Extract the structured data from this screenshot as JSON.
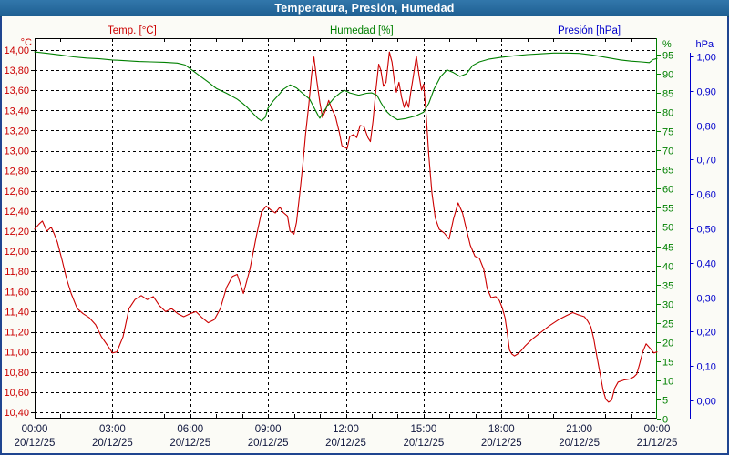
{
  "window": {
    "title": "Temperatura, Presión, Humedad"
  },
  "legend": [
    {
      "label": "Temp. [°C]",
      "color": "#cc0000"
    },
    {
      "label": "Humedad [%]",
      "color": "#008000"
    },
    {
      "label": "Presión [hPa]",
      "color": "#0000cc"
    }
  ],
  "colors": {
    "titlebar_bg": "#26689b",
    "window_border": "#1f4590",
    "margin_bg": "#fbfbf6",
    "plot_bg": "#ffffff",
    "grid": "#000000",
    "frame": "#000000",
    "time_label": "#11183f",
    "temp": "#cc0000",
    "humidity": "#008000",
    "pressure": "#0000cc"
  },
  "chart_data": {
    "type": "line",
    "title": "Temperatura, Presión, Humedad",
    "legend_position": "top",
    "grid": {
      "horizontal": "dashed per 0.20 °C step",
      "vertical": "dashed every 3 h",
      "minor_x_ticks": "hourly"
    },
    "x_axis": {
      "range_hours": [
        0,
        24
      ],
      "tick_interval_hours": 3,
      "ticks": [
        {
          "time": "00:00",
          "date": "20/12/25"
        },
        {
          "time": "03:00",
          "date": "20/12/25"
        },
        {
          "time": "06:00",
          "date": "20/12/25"
        },
        {
          "time": "09:00",
          "date": "20/12/25"
        },
        {
          "time": "12:00",
          "date": "20/12/25"
        },
        {
          "time": "15:00",
          "date": "20/12/25"
        },
        {
          "time": "18:00",
          "date": "20/12/25"
        },
        {
          "time": "21:00",
          "date": "20/12/25"
        },
        {
          "time": "00:00",
          "date": "21/12/25"
        }
      ]
    },
    "y_axes": {
      "temperature": {
        "unit": "°C",
        "side": "left",
        "color": "#cc0000",
        "min": 10.4,
        "max": 14.0,
        "tick_step": 0.2,
        "tick_labels": [
          "14,00",
          "13,80",
          "13,60",
          "13,40",
          "13,20",
          "13,00",
          "12,80",
          "12,60",
          "12,40",
          "12,20",
          "12,00",
          "11,80",
          "11,60",
          "11,40",
          "11,20",
          "11,00",
          "10,80",
          "10,60",
          "10,40"
        ]
      },
      "humidity": {
        "unit": "%",
        "side": "right",
        "color": "#008000",
        "min": 0,
        "max": 95,
        "tick_step": 5,
        "tick_labels": [
          "95",
          "90",
          "85",
          "80",
          "75",
          "70",
          "65",
          "60",
          "55",
          "50",
          "45",
          "40",
          "35",
          "30",
          "25",
          "20",
          "15",
          "10",
          "5",
          "0"
        ]
      },
      "pressure": {
        "unit": "hPa",
        "side": "far-right",
        "color": "#0000cc",
        "min": 0.0,
        "max": 1.0,
        "tick_step": 0.1,
        "tick_labels": [
          "1,00",
          "0,90",
          "0,80",
          "0,70",
          "0,60",
          "0,50",
          "0,40",
          "0,30",
          "0,20",
          "0,10",
          "0,00"
        ]
      }
    },
    "series": [
      {
        "name": "Temp. [°C]",
        "axis": "temperature",
        "color": "#cc0000",
        "points": [
          [
            0,
            12.22
          ],
          [
            0.17,
            12.27
          ],
          [
            0.3,
            12.3
          ],
          [
            0.47,
            12.2
          ],
          [
            0.64,
            12.24
          ],
          [
            0.76,
            12.17
          ],
          [
            0.88,
            12.09
          ],
          [
            1.06,
            11.91
          ],
          [
            1.23,
            11.73
          ],
          [
            1.41,
            11.58
          ],
          [
            1.64,
            11.43
          ],
          [
            1.87,
            11.38
          ],
          [
            2.11,
            11.34
          ],
          [
            2.35,
            11.27
          ],
          [
            2.58,
            11.15
          ],
          [
            2.82,
            11.06
          ],
          [
            3,
            10.99
          ],
          [
            3.17,
            11
          ],
          [
            3.41,
            11.15
          ],
          [
            3.64,
            11.43
          ],
          [
            3.87,
            11.52
          ],
          [
            4.11,
            11.56
          ],
          [
            4.34,
            11.52
          ],
          [
            4.58,
            11.55
          ],
          [
            4.81,
            11.46
          ],
          [
            5.05,
            11.4
          ],
          [
            5.28,
            11.43
          ],
          [
            5.52,
            11.38
          ],
          [
            5.75,
            11.35
          ],
          [
            5.99,
            11.38
          ],
          [
            6.22,
            11.4
          ],
          [
            6.46,
            11.34
          ],
          [
            6.69,
            11.29
          ],
          [
            6.93,
            11.32
          ],
          [
            7.16,
            11.43
          ],
          [
            7.4,
            11.64
          ],
          [
            7.63,
            11.75
          ],
          [
            7.81,
            11.77
          ],
          [
            8.05,
            11.58
          ],
          [
            8.3,
            11.82
          ],
          [
            8.55,
            12.15
          ],
          [
            8.75,
            12.39
          ],
          [
            8.93,
            12.45
          ],
          [
            9.11,
            12.41
          ],
          [
            9.28,
            12.38
          ],
          [
            9.46,
            12.44
          ],
          [
            9.57,
            12.39
          ],
          [
            9.75,
            12.35
          ],
          [
            9.85,
            12.2
          ],
          [
            10,
            12.17
          ],
          [
            10.1,
            12.29
          ],
          [
            10.22,
            12.56
          ],
          [
            10.34,
            12.86
          ],
          [
            10.45,
            13.17
          ],
          [
            10.57,
            13.45
          ],
          [
            10.68,
            13.75
          ],
          [
            10.77,
            13.93
          ],
          [
            10.88,
            13.7
          ],
          [
            11,
            13.48
          ],
          [
            11.1,
            13.33
          ],
          [
            11.22,
            13.4
          ],
          [
            11.34,
            13.5
          ],
          [
            11.45,
            13.42
          ],
          [
            11.6,
            13.34
          ],
          [
            11.75,
            13.18
          ],
          [
            11.85,
            13.05
          ],
          [
            12.05,
            13.02
          ],
          [
            12.15,
            13.14
          ],
          [
            12.3,
            13.16
          ],
          [
            12.42,
            13.13
          ],
          [
            12.55,
            13.25
          ],
          [
            12.7,
            13.24
          ],
          [
            12.85,
            13.13
          ],
          [
            12.95,
            13.09
          ],
          [
            13.05,
            13.3
          ],
          [
            13.17,
            13.63
          ],
          [
            13.27,
            13.86
          ],
          [
            13.35,
            13.8
          ],
          [
            13.45,
            13.64
          ],
          [
            13.55,
            13.68
          ],
          [
            13.68,
            13.98
          ],
          [
            13.78,
            13.88
          ],
          [
            13.88,
            13.68
          ],
          [
            13.95,
            13.58
          ],
          [
            14.05,
            13.68
          ],
          [
            14.15,
            13.53
          ],
          [
            14.25,
            13.43
          ],
          [
            14.33,
            13.5
          ],
          [
            14.42,
            13.43
          ],
          [
            14.5,
            13.57
          ],
          [
            14.62,
            13.77
          ],
          [
            14.72,
            13.94
          ],
          [
            14.82,
            13.75
          ],
          [
            14.92,
            13.6
          ],
          [
            15,
            13.66
          ],
          [
            15.1,
            13.35
          ],
          [
            15.2,
            12.95
          ],
          [
            15.32,
            12.58
          ],
          [
            15.45,
            12.33
          ],
          [
            15.6,
            12.22
          ],
          [
            15.8,
            12.18
          ],
          [
            15.98,
            12.12
          ],
          [
            16.15,
            12.32
          ],
          [
            16.33,
            12.48
          ],
          [
            16.5,
            12.38
          ],
          [
            16.62,
            12.25
          ],
          [
            16.8,
            12.06
          ],
          [
            16.98,
            11.95
          ],
          [
            17.15,
            11.93
          ],
          [
            17.32,
            11.82
          ],
          [
            17.45,
            11.63
          ],
          [
            17.6,
            11.54
          ],
          [
            17.78,
            11.55
          ],
          [
            17.92,
            11.51
          ],
          [
            18.03,
            11.44
          ],
          [
            18.14,
            11.34
          ],
          [
            18.22,
            11.2
          ],
          [
            18.31,
            11.02
          ],
          [
            18.4,
            10.98
          ],
          [
            18.5,
            10.96
          ],
          [
            18.63,
            10.98
          ],
          [
            18.75,
            11.01
          ],
          [
            18.92,
            11.06
          ],
          [
            19.2,
            11.13
          ],
          [
            19.5,
            11.19
          ],
          [
            19.85,
            11.26
          ],
          [
            20.2,
            11.32
          ],
          [
            20.5,
            11.36
          ],
          [
            20.75,
            11.39
          ],
          [
            20.95,
            11.37
          ],
          [
            21.2,
            11.35
          ],
          [
            21.32,
            11.31
          ],
          [
            21.45,
            11.25
          ],
          [
            21.56,
            11.13
          ],
          [
            21.67,
            10.97
          ],
          [
            21.8,
            10.79
          ],
          [
            21.92,
            10.62
          ],
          [
            22.02,
            10.53
          ],
          [
            22.13,
            10.5
          ],
          [
            22.25,
            10.52
          ],
          [
            22.37,
            10.64
          ],
          [
            22.5,
            10.7
          ],
          [
            22.72,
            10.72
          ],
          [
            22.95,
            10.73
          ],
          [
            23.1,
            10.75
          ],
          [
            23.22,
            10.78
          ],
          [
            23.33,
            10.88
          ],
          [
            23.45,
            11
          ],
          [
            23.58,
            11.08
          ],
          [
            23.72,
            11.04
          ],
          [
            23.88,
            10.99
          ],
          [
            24,
            11
          ]
        ]
      },
      {
        "name": "Humedad [%]",
        "axis": "humidity",
        "color": "#008000",
        "points": [
          [
            0,
            95.7
          ],
          [
            0.5,
            95.3
          ],
          [
            1,
            94.9
          ],
          [
            1.5,
            94.4
          ],
          [
            2,
            94.1
          ],
          [
            2.5,
            93.9
          ],
          [
            3,
            93.6
          ],
          [
            3.5,
            93.4
          ],
          [
            4,
            93.2
          ],
          [
            4.5,
            93.1
          ],
          [
            5,
            93
          ],
          [
            5.5,
            92.8
          ],
          [
            5.8,
            92.3
          ],
          [
            6,
            91.3
          ],
          [
            6.3,
            89.8
          ],
          [
            6.7,
            87.8
          ],
          [
            7,
            86.2
          ],
          [
            7.4,
            84.9
          ],
          [
            7.8,
            83.4
          ],
          [
            8,
            82.4
          ],
          [
            8.2,
            81.2
          ],
          [
            8.4,
            79.8
          ],
          [
            8.6,
            78.4
          ],
          [
            8.75,
            77.7
          ],
          [
            8.9,
            78.7
          ],
          [
            9,
            81
          ],
          [
            9.2,
            82.9
          ],
          [
            9.4,
            84.4
          ],
          [
            9.6,
            86
          ],
          [
            9.85,
            87.1
          ],
          [
            10.1,
            86.3
          ],
          [
            10.3,
            85.1
          ],
          [
            10.6,
            83.4
          ],
          [
            10.8,
            80.8
          ],
          [
            10.95,
            78.9
          ],
          [
            11,
            78.4
          ],
          [
            11.1,
            79.6
          ],
          [
            11.3,
            81.7
          ],
          [
            11.55,
            83.7
          ],
          [
            11.8,
            85.1
          ],
          [
            11.95,
            85.7
          ],
          [
            12.15,
            85
          ],
          [
            12.5,
            84.4
          ],
          [
            12.8,
            84.9
          ],
          [
            13,
            85
          ],
          [
            13.2,
            84.4
          ],
          [
            13.35,
            82.5
          ],
          [
            13.55,
            80.3
          ],
          [
            13.75,
            79
          ],
          [
            14,
            78
          ],
          [
            14.3,
            78.3
          ],
          [
            14.7,
            79
          ],
          [
            15,
            80
          ],
          [
            15.2,
            82.3
          ],
          [
            15.4,
            86
          ],
          [
            15.65,
            89.2
          ],
          [
            15.9,
            91
          ],
          [
            16.15,
            90.3
          ],
          [
            16.4,
            89.3
          ],
          [
            16.65,
            90
          ],
          [
            16.9,
            92.2
          ],
          [
            17.15,
            93.1
          ],
          [
            17.5,
            93.8
          ],
          [
            18,
            94.3
          ],
          [
            18.5,
            94.7
          ],
          [
            19,
            95
          ],
          [
            19.5,
            95.2
          ],
          [
            20,
            95.4
          ],
          [
            20.5,
            95.4
          ],
          [
            21,
            95.3
          ],
          [
            21.5,
            94.9
          ],
          [
            22,
            94.3
          ],
          [
            22.6,
            93.6
          ],
          [
            23,
            93.3
          ],
          [
            23.4,
            93.1
          ],
          [
            23.7,
            92.9
          ],
          [
            23.85,
            93.7
          ],
          [
            24,
            94
          ]
        ]
      },
      {
        "name": "Presión [hPa]",
        "axis": "pressure",
        "color": "#0000cc",
        "points": []
      }
    ]
  }
}
